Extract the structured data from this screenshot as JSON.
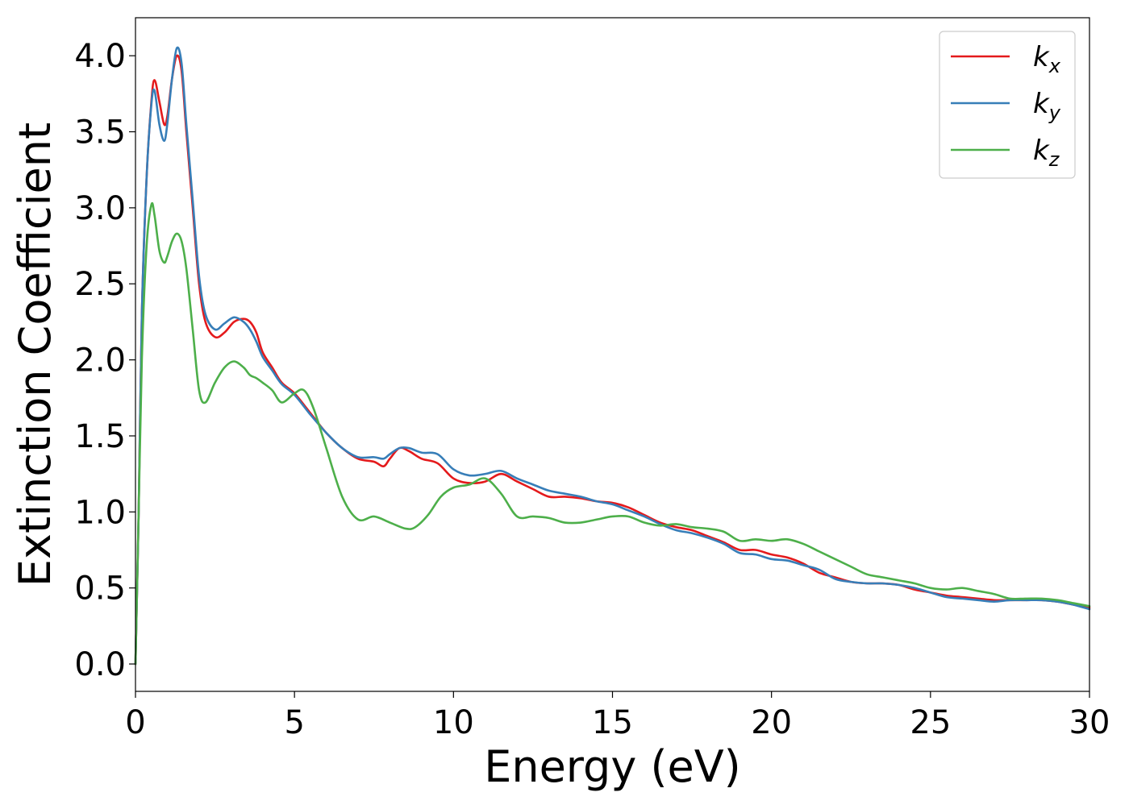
{
  "chart_data": {
    "type": "line",
    "title": "",
    "xlabel": "Energy (eV)",
    "ylabel": "Extinction Coefficient",
    "xlim": [
      0,
      30
    ],
    "ylim": [
      -0.18,
      4.25
    ],
    "xticks": [
      0,
      5,
      10,
      15,
      20,
      25,
      30
    ],
    "xtick_labels": [
      "0",
      "5",
      "10",
      "15",
      "20",
      "25",
      "30"
    ],
    "yticks": [
      0.0,
      0.5,
      1.0,
      1.5,
      2.0,
      2.5,
      3.0,
      3.5,
      4.0
    ],
    "ytick_labels": [
      "0.0",
      "0.5",
      "1.0",
      "1.5",
      "2.0",
      "2.5",
      "3.0",
      "3.5",
      "4.0"
    ],
    "grid": false,
    "legend_position": "top-right",
    "series": [
      {
        "name_main": "k",
        "name_sub": "x",
        "color": "#e41a1c",
        "points": [
          [
            0,
            0.0
          ],
          [
            0.1,
            1.0
          ],
          [
            0.2,
            2.3
          ],
          [
            0.35,
            3.2
          ],
          [
            0.5,
            3.7
          ],
          [
            0.6,
            3.84
          ],
          [
            0.75,
            3.7
          ],
          [
            0.9,
            3.55
          ],
          [
            1.0,
            3.6
          ],
          [
            1.15,
            3.85
          ],
          [
            1.3,
            4.0
          ],
          [
            1.45,
            3.9
          ],
          [
            1.6,
            3.5
          ],
          [
            1.8,
            3.0
          ],
          [
            2.0,
            2.5
          ],
          [
            2.2,
            2.25
          ],
          [
            2.5,
            2.15
          ],
          [
            2.8,
            2.18
          ],
          [
            3.1,
            2.25
          ],
          [
            3.4,
            2.27
          ],
          [
            3.6,
            2.25
          ],
          [
            3.8,
            2.18
          ],
          [
            4.0,
            2.05
          ],
          [
            4.3,
            1.95
          ],
          [
            4.6,
            1.85
          ],
          [
            5.0,
            1.78
          ],
          [
            5.5,
            1.65
          ],
          [
            6.0,
            1.52
          ],
          [
            6.5,
            1.42
          ],
          [
            7.0,
            1.35
          ],
          [
            7.5,
            1.33
          ],
          [
            7.8,
            1.3
          ],
          [
            8.0,
            1.35
          ],
          [
            8.3,
            1.42
          ],
          [
            8.6,
            1.4
          ],
          [
            9.0,
            1.35
          ],
          [
            9.5,
            1.32
          ],
          [
            10.0,
            1.22
          ],
          [
            10.5,
            1.19
          ],
          [
            11.0,
            1.2
          ],
          [
            11.5,
            1.25
          ],
          [
            12.0,
            1.2
          ],
          [
            12.5,
            1.15
          ],
          [
            13.0,
            1.1
          ],
          [
            13.5,
            1.1
          ],
          [
            14.0,
            1.09
          ],
          [
            14.5,
            1.07
          ],
          [
            15.0,
            1.06
          ],
          [
            15.5,
            1.03
          ],
          [
            16.0,
            0.98
          ],
          [
            16.5,
            0.93
          ],
          [
            17.0,
            0.9
          ],
          [
            17.5,
            0.88
          ],
          [
            18.0,
            0.84
          ],
          [
            18.5,
            0.8
          ],
          [
            19.0,
            0.75
          ],
          [
            19.5,
            0.75
          ],
          [
            20.0,
            0.72
          ],
          [
            20.5,
            0.7
          ],
          [
            21.0,
            0.66
          ],
          [
            21.5,
            0.6
          ],
          [
            22.0,
            0.57
          ],
          [
            22.5,
            0.54
          ],
          [
            23.0,
            0.53
          ],
          [
            23.5,
            0.53
          ],
          [
            24.0,
            0.52
          ],
          [
            24.5,
            0.49
          ],
          [
            25.0,
            0.47
          ],
          [
            25.5,
            0.45
          ],
          [
            26.0,
            0.44
          ],
          [
            26.5,
            0.43
          ],
          [
            27.0,
            0.42
          ],
          [
            27.5,
            0.42
          ],
          [
            28.0,
            0.42
          ],
          [
            28.5,
            0.42
          ],
          [
            29.0,
            0.41
          ],
          [
            29.5,
            0.39
          ],
          [
            30.0,
            0.37
          ]
        ]
      },
      {
        "name_main": "k",
        "name_sub": "y",
        "color": "#377eb8",
        "points": [
          [
            0,
            0.0
          ],
          [
            0.1,
            1.0
          ],
          [
            0.2,
            2.3
          ],
          [
            0.35,
            3.2
          ],
          [
            0.5,
            3.68
          ],
          [
            0.6,
            3.77
          ],
          [
            0.75,
            3.55
          ],
          [
            0.9,
            3.44
          ],
          [
            1.0,
            3.55
          ],
          [
            1.15,
            3.85
          ],
          [
            1.3,
            4.05
          ],
          [
            1.45,
            3.95
          ],
          [
            1.6,
            3.55
          ],
          [
            1.8,
            3.05
          ],
          [
            2.0,
            2.55
          ],
          [
            2.2,
            2.3
          ],
          [
            2.5,
            2.2
          ],
          [
            2.8,
            2.24
          ],
          [
            3.1,
            2.28
          ],
          [
            3.4,
            2.25
          ],
          [
            3.6,
            2.2
          ],
          [
            3.8,
            2.12
          ],
          [
            4.0,
            2.02
          ],
          [
            4.3,
            1.93
          ],
          [
            4.6,
            1.84
          ],
          [
            5.0,
            1.77
          ],
          [
            5.5,
            1.64
          ],
          [
            6.0,
            1.52
          ],
          [
            6.5,
            1.42
          ],
          [
            7.0,
            1.36
          ],
          [
            7.5,
            1.36
          ],
          [
            7.8,
            1.35
          ],
          [
            8.0,
            1.38
          ],
          [
            8.3,
            1.42
          ],
          [
            8.6,
            1.42
          ],
          [
            9.0,
            1.39
          ],
          [
            9.5,
            1.38
          ],
          [
            10.0,
            1.28
          ],
          [
            10.5,
            1.24
          ],
          [
            11.0,
            1.25
          ],
          [
            11.5,
            1.27
          ],
          [
            12.0,
            1.22
          ],
          [
            12.5,
            1.18
          ],
          [
            13.0,
            1.14
          ],
          [
            13.5,
            1.12
          ],
          [
            14.0,
            1.1
          ],
          [
            14.5,
            1.07
          ],
          [
            15.0,
            1.05
          ],
          [
            15.5,
            1.01
          ],
          [
            16.0,
            0.97
          ],
          [
            16.5,
            0.92
          ],
          [
            17.0,
            0.88
          ],
          [
            17.5,
            0.86
          ],
          [
            18.0,
            0.83
          ],
          [
            18.5,
            0.79
          ],
          [
            19.0,
            0.73
          ],
          [
            19.5,
            0.72
          ],
          [
            20.0,
            0.69
          ],
          [
            20.5,
            0.68
          ],
          [
            21.0,
            0.65
          ],
          [
            21.5,
            0.62
          ],
          [
            22.0,
            0.56
          ],
          [
            22.5,
            0.54
          ],
          [
            23.0,
            0.53
          ],
          [
            23.5,
            0.53
          ],
          [
            24.0,
            0.52
          ],
          [
            24.5,
            0.5
          ],
          [
            25.0,
            0.47
          ],
          [
            25.5,
            0.44
          ],
          [
            26.0,
            0.43
          ],
          [
            26.5,
            0.42
          ],
          [
            27.0,
            0.41
          ],
          [
            27.5,
            0.42
          ],
          [
            28.0,
            0.42
          ],
          [
            28.5,
            0.42
          ],
          [
            29.0,
            0.41
          ],
          [
            29.5,
            0.39
          ],
          [
            30.0,
            0.36
          ]
        ]
      },
      {
        "name_main": "k",
        "name_sub": "z",
        "color": "#4daf4a",
        "points": [
          [
            0,
            0.0
          ],
          [
            0.1,
            1.0
          ],
          [
            0.2,
            2.0
          ],
          [
            0.35,
            2.75
          ],
          [
            0.5,
            3.02
          ],
          [
            0.6,
            2.95
          ],
          [
            0.75,
            2.72
          ],
          [
            0.9,
            2.64
          ],
          [
            1.0,
            2.68
          ],
          [
            1.15,
            2.78
          ],
          [
            1.3,
            2.83
          ],
          [
            1.45,
            2.78
          ],
          [
            1.6,
            2.6
          ],
          [
            1.8,
            2.2
          ],
          [
            2.0,
            1.8
          ],
          [
            2.2,
            1.72
          ],
          [
            2.5,
            1.85
          ],
          [
            2.8,
            1.95
          ],
          [
            3.1,
            1.99
          ],
          [
            3.4,
            1.95
          ],
          [
            3.6,
            1.9
          ],
          [
            3.8,
            1.88
          ],
          [
            4.0,
            1.85
          ],
          [
            4.3,
            1.8
          ],
          [
            4.6,
            1.72
          ],
          [
            5.0,
            1.78
          ],
          [
            5.3,
            1.8
          ],
          [
            5.6,
            1.68
          ],
          [
            6.0,
            1.42
          ],
          [
            6.5,
            1.1
          ],
          [
            7.0,
            0.95
          ],
          [
            7.5,
            0.97
          ],
          [
            8.0,
            0.93
          ],
          [
            8.5,
            0.89
          ],
          [
            8.8,
            0.9
          ],
          [
            9.2,
            0.98
          ],
          [
            9.6,
            1.1
          ],
          [
            10.0,
            1.16
          ],
          [
            10.5,
            1.18
          ],
          [
            11.0,
            1.22
          ],
          [
            11.5,
            1.12
          ],
          [
            12.0,
            0.97
          ],
          [
            12.5,
            0.97
          ],
          [
            13.0,
            0.96
          ],
          [
            13.5,
            0.93
          ],
          [
            14.0,
            0.93
          ],
          [
            14.5,
            0.95
          ],
          [
            15.0,
            0.97
          ],
          [
            15.5,
            0.97
          ],
          [
            16.0,
            0.93
          ],
          [
            16.5,
            0.91
          ],
          [
            17.0,
            0.92
          ],
          [
            17.5,
            0.9
          ],
          [
            18.0,
            0.89
          ],
          [
            18.5,
            0.87
          ],
          [
            19.0,
            0.81
          ],
          [
            19.5,
            0.82
          ],
          [
            20.0,
            0.81
          ],
          [
            20.5,
            0.82
          ],
          [
            21.0,
            0.79
          ],
          [
            21.5,
            0.74
          ],
          [
            22.0,
            0.69
          ],
          [
            22.5,
            0.64
          ],
          [
            23.0,
            0.59
          ],
          [
            23.5,
            0.57
          ],
          [
            24.0,
            0.55
          ],
          [
            24.5,
            0.53
          ],
          [
            25.0,
            0.5
          ],
          [
            25.5,
            0.49
          ],
          [
            26.0,
            0.5
          ],
          [
            26.5,
            0.48
          ],
          [
            27.0,
            0.46
          ],
          [
            27.5,
            0.43
          ],
          [
            28.0,
            0.43
          ],
          [
            28.5,
            0.43
          ],
          [
            29.0,
            0.42
          ],
          [
            29.5,
            0.4
          ],
          [
            30.0,
            0.38
          ]
        ]
      }
    ]
  }
}
